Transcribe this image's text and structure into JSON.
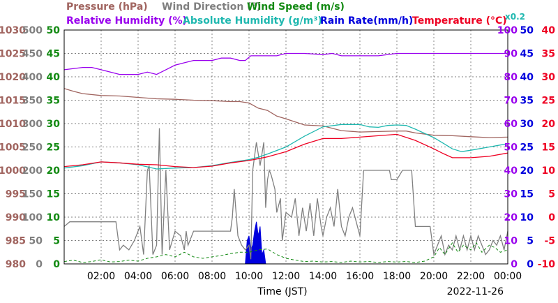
{
  "header": {
    "row1": [
      {
        "text": "Pressure (hPa)",
        "color": "#a0645f"
      },
      {
        "text": "Wind Direction (°)",
        "color": "#808080"
      },
      {
        "text": "Wind Speed (m/s)",
        "color": "#138a13"
      }
    ],
    "row2": [
      {
        "text": "Relative Humidity (%)",
        "color": "#9900ee"
      },
      {
        "text": "Absolute Humidity (g/m³)",
        "color": "#20b8b0"
      },
      {
        "text": "Rain Rate(mm/h)",
        "color": "#0000dd"
      },
      {
        "text": "Temperature (°C)",
        "color": "#ee0022"
      }
    ],
    "scale_note": {
      "text": "x0.2",
      "color": "#20b8b0"
    }
  },
  "footer": {
    "xlabel": "Time (JST)",
    "date": "2022-11-26"
  },
  "chart_data": {
    "type": "line",
    "x_unit": "hours",
    "xlim": [
      0,
      24
    ],
    "x_ticks": [
      {
        "x": 2,
        "label": "02:00"
      },
      {
        "x": 4,
        "label": "04:00"
      },
      {
        "x": 6,
        "label": "06:00"
      },
      {
        "x": 8,
        "label": "08:00"
      },
      {
        "x": 10,
        "label": "10:00"
      },
      {
        "x": 12,
        "label": "12:00"
      },
      {
        "x": 14,
        "label": "14:00"
      },
      {
        "x": 16,
        "label": "16:00"
      },
      {
        "x": 18,
        "label": "18:00"
      },
      {
        "x": 20,
        "label": "20:00"
      },
      {
        "x": 22,
        "label": "22:00"
      },
      {
        "x": 24,
        "label": "00:00"
      }
    ],
    "grid": "dotted",
    "axes": [
      {
        "name": "Pressure",
        "side": "left",
        "order": 0,
        "color": "#a0645f",
        "min": 980,
        "max": 1030,
        "ticks": [
          "980",
          "985",
          "990",
          "995",
          "1000",
          "1005",
          "1010",
          "1015",
          "1020",
          "1025",
          "1030"
        ]
      },
      {
        "name": "Wind Direction",
        "side": "left",
        "order": 1,
        "color": "#808080",
        "min": 0,
        "max": 500,
        "ticks": [
          "0",
          "50",
          "100",
          "150",
          "200",
          "250",
          "300",
          "350",
          "400",
          "450",
          "500"
        ]
      },
      {
        "name": "Wind Speed",
        "side": "left",
        "order": 2,
        "color": "#138a13",
        "min": 0,
        "max": 50,
        "ticks": [
          "0",
          "5",
          "10",
          "15",
          "20",
          "25",
          "30",
          "35",
          "40",
          "45",
          "50"
        ]
      },
      {
        "name": "Relative Humidity",
        "side": "right",
        "order": 0,
        "color": "#9900ee",
        "min": 0,
        "max": 100,
        "ticks": [
          "0",
          "10",
          "20",
          "30",
          "40",
          "50",
          "60",
          "70",
          "80",
          "90",
          "100"
        ]
      },
      {
        "name": "Rain Rate",
        "side": "right",
        "order": 1,
        "color": "#0000dd",
        "min": 0,
        "max": 50,
        "ticks": [
          "0",
          "5",
          "10",
          "15",
          "20",
          "25",
          "30",
          "35",
          "40",
          "45",
          "50"
        ]
      },
      {
        "name": "Temperature",
        "side": "right",
        "order": 2,
        "color": "#ee0022",
        "min": -10,
        "max": 40,
        "ticks": [
          "-10",
          "-5",
          "0",
          "5",
          "10",
          "15",
          "20",
          "25",
          "30",
          "35",
          "40"
        ]
      }
    ],
    "series": [
      {
        "name": "Pressure",
        "axis": "Pressure",
        "color": "#a0645f",
        "style": "line",
        "x": [
          0,
          0.5,
          1,
          2,
          3,
          4,
          5,
          6,
          7,
          8,
          9,
          9.5,
          10,
          10.5,
          11,
          11.5,
          12,
          13,
          14,
          15,
          16,
          17,
          18,
          18.5,
          19,
          20,
          21,
          22,
          23,
          24
        ],
        "y": [
          1017.5,
          1016.9,
          1016.4,
          1016,
          1015.9,
          1015.6,
          1015.3,
          1015.2,
          1015,
          1014.9,
          1014.7,
          1014.7,
          1014.4,
          1013.3,
          1012.8,
          1011.6,
          1011.0,
          1009.7,
          1009.5,
          1008.5,
          1008.2,
          1008.3,
          1008.4,
          1008.4,
          1008.0,
          1007.5,
          1007.4,
          1007.2,
          1007.0,
          1007.1
        ]
      },
      {
        "name": "Relative Humidity",
        "axis": "Relative Humidity",
        "color": "#9900ee",
        "style": "line",
        "x": [
          0,
          1,
          1.5,
          2,
          3,
          3.5,
          4,
          4.5,
          5,
          5.5,
          6,
          6.5,
          7,
          7.5,
          8,
          8.5,
          9,
          9.5,
          9.8,
          10.1,
          10.5,
          11,
          11.5,
          12,
          13,
          14,
          14.5,
          15,
          16,
          17,
          18,
          19,
          20,
          21,
          22,
          23,
          24
        ],
        "y": [
          83,
          84,
          84,
          83,
          81,
          81,
          81,
          82,
          81,
          83,
          85,
          86,
          87,
          87,
          87,
          88,
          88,
          87,
          87,
          89,
          89,
          89,
          89,
          90,
          90,
          89.5,
          90,
          89,
          89,
          89,
          90,
          90,
          90,
          90,
          90,
          90,
          90
        ]
      },
      {
        "name": "Absolute Humidity",
        "axis": "Wind Speed",
        "color": "#20b8b0",
        "style": "line",
        "x": [
          0,
          1,
          2,
          3,
          4,
          5,
          6,
          7,
          8,
          9,
          10,
          10.5,
          11,
          12,
          13,
          14,
          15,
          16,
          16.5,
          17,
          17.5,
          18,
          18.5,
          19,
          20,
          20.5,
          21,
          21.5,
          22,
          23,
          24
        ],
        "y": [
          20.5,
          21.0,
          21.8,
          21.6,
          21.2,
          20.3,
          20.5,
          20.6,
          21.0,
          21.7,
          22.3,
          22.8,
          23.5,
          25.0,
          27.3,
          29.3,
          29.8,
          29.8,
          29.3,
          29.2,
          29.6,
          29.7,
          29.6,
          28.8,
          27.0,
          25.8,
          24.6,
          24.0,
          24.3,
          25.0,
          25.7
        ]
      },
      {
        "name": "Temperature",
        "axis": "Temperature",
        "color": "#ee0022",
        "style": "line",
        "x": [
          0,
          1,
          2,
          3,
          4,
          5,
          6,
          7,
          8,
          9,
          10,
          10.5,
          11,
          12,
          13,
          14,
          15,
          16,
          17,
          18,
          19,
          20,
          20.5,
          21,
          22,
          23,
          24
        ],
        "y": [
          10.8,
          11.2,
          11.8,
          11.6,
          11.3,
          11.2,
          10.8,
          10.6,
          10.9,
          11.6,
          12.1,
          12.5,
          12.9,
          14.0,
          15.6,
          16.8,
          16.8,
          17.1,
          17.4,
          17.7,
          16.4,
          14.6,
          13.6,
          12.7,
          12.7,
          13.0,
          13.7
        ]
      },
      {
        "name": "Wind Direction",
        "axis": "Wind Direction",
        "color": "#808080",
        "style": "line",
        "x": [
          0,
          0.3,
          1,
          2,
          2.8,
          3.0,
          3.2,
          3.5,
          3.8,
          4.1,
          4.3,
          4.5,
          4.6,
          4.8,
          5.0,
          5.15,
          5.3,
          5.5,
          5.7,
          6.0,
          6.3,
          6.5,
          6.6,
          6.7,
          7.0,
          7.5,
          8.0,
          8.5,
          9.0,
          9.1,
          9.2,
          9.4,
          9.6,
          9.8,
          10.0,
          10.1,
          10.2,
          10.4,
          10.6,
          10.8,
          10.9,
          11.0,
          11.1,
          11.2,
          11.4,
          11.5,
          11.7,
          11.8,
          12.0,
          12.3,
          12.5,
          12.7,
          12.9,
          13.1,
          13.3,
          13.5,
          13.7,
          13.9,
          14.0,
          14.2,
          14.4,
          14.6,
          14.8,
          15.0,
          15.2,
          15.4,
          15.6,
          15.8,
          16.0,
          16.2,
          16.4,
          16.5,
          16.7,
          16.9,
          17.1,
          17.3,
          17.6,
          17.7,
          18.0,
          18.3,
          18.6,
          18.8,
          19.0,
          19.2,
          19.4,
          19.6,
          19.8,
          20.0,
          20.2,
          20.4,
          20.6,
          20.8,
          21.0,
          21.2,
          21.4,
          21.6,
          21.8,
          22.0,
          22.2,
          22.4,
          22.6,
          22.8,
          23.0,
          23.2,
          23.4,
          23.6,
          23.8,
          24.0
        ],
        "y": [
          80,
          90,
          90,
          90,
          90,
          30,
          40,
          30,
          50,
          80,
          20,
          200,
          210,
          20,
          40,
          290,
          20,
          200,
          30,
          70,
          60,
          30,
          70,
          40,
          70,
          70,
          70,
          70,
          70,
          100,
          160,
          60,
          40,
          30,
          40,
          10,
          200,
          260,
          210,
          260,
          120,
          180,
          200,
          190,
          160,
          110,
          140,
          50,
          110,
          100,
          140,
          60,
          120,
          70,
          130,
          60,
          140,
          80,
          60,
          100,
          120,
          80,
          160,
          80,
          60,
          100,
          120,
          90,
          60,
          200,
          200,
          200,
          200,
          200,
          200,
          200,
          200,
          180,
          180,
          200,
          200,
          200,
          80,
          80,
          80,
          80,
          80,
          20,
          40,
          60,
          20,
          40,
          30,
          60,
          30,
          60,
          30,
          60,
          30,
          60,
          40,
          20,
          30,
          50,
          40,
          60,
          30,
          70
        ]
      },
      {
        "name": "Wind Speed",
        "axis": "Wind Speed",
        "color": "#138a13",
        "style": "dashed",
        "x": [
          0,
          0.5,
          1,
          1.5,
          2,
          2.5,
          3,
          3.5,
          4,
          4.5,
          5,
          5.5,
          6,
          6.5,
          7,
          7.5,
          8,
          8.5,
          9,
          9.5,
          10,
          10.5,
          11,
          11.5,
          12,
          12.5,
          13,
          13.5,
          14,
          14.5,
          15,
          15.5,
          16,
          16.5,
          17,
          17.5,
          18,
          18.5,
          19,
          19.5,
          20,
          20.3,
          20.6,
          21,
          21.3,
          21.6,
          22,
          22.3,
          22.6,
          23,
          23.3,
          23.6,
          24
        ],
        "y": [
          0.5,
          0.8,
          0.3,
          0.5,
          0.9,
          0.4,
          0.5,
          0.8,
          0.6,
          1.2,
          1.5,
          2.0,
          1.5,
          2.5,
          1.5,
          1.2,
          1.5,
          1.8,
          2.2,
          2.5,
          2.5,
          3.0,
          3.2,
          2.0,
          1.2,
          0.8,
          0.5,
          0.6,
          0.4,
          0.5,
          0.3,
          0.6,
          0.4,
          0.5,
          0.3,
          0.5,
          0.4,
          0.5,
          0.3,
          0.6,
          1.5,
          3.5,
          2.0,
          4.5,
          2.5,
          4.0,
          3.0,
          4.5,
          2.5,
          4.0,
          3.5,
          2.5,
          3.0
        ]
      },
      {
        "name": "Rain Rate",
        "axis": "Rain Rate",
        "color": "#0000dd",
        "style": "area",
        "x": [
          9.8,
          9.9,
          10.0,
          10.1,
          10.2,
          10.3,
          10.4,
          10.5,
          10.6,
          10.7,
          10.8,
          10.9
        ],
        "y": [
          0,
          5,
          6,
          3,
          4,
          7,
          9,
          6,
          8,
          2,
          3,
          0
        ]
      }
    ]
  }
}
